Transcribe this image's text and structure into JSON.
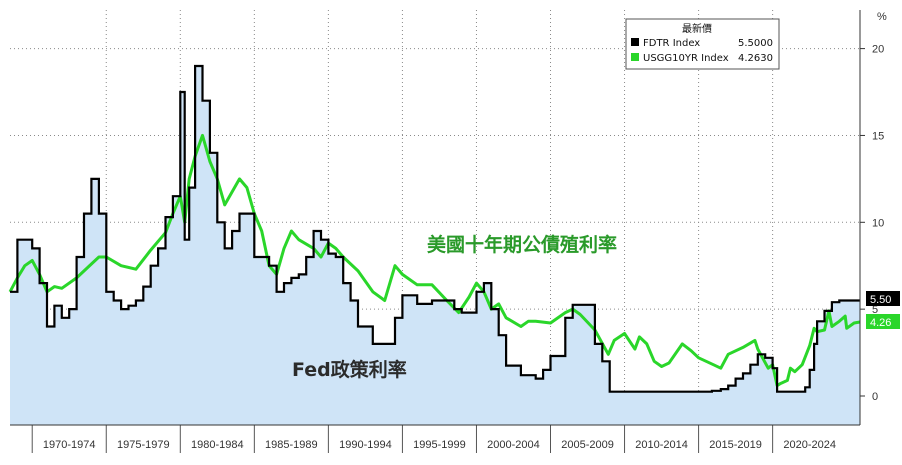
{
  "chart_data": {
    "type": "line",
    "y_unit_label": "%",
    "ylim": [
      -2,
      21
    ],
    "y_ticks": [
      0,
      5,
      10,
      15,
      20
    ],
    "x_range": [
      1968.5,
      2025.9
    ],
    "x_period_labels": [
      "1970-1974",
      "1975-1979",
      "1980-1984",
      "1985-1989",
      "1990-1994",
      "1995-1999",
      "2000-2004",
      "2005-2009",
      "2010-2014",
      "2015-2019",
      "2020-2024"
    ],
    "grid": true,
    "legend": {
      "title": "最新價",
      "placement": "top-right",
      "entries": [
        {
          "name": "FDTR Index",
          "value": "5.5000",
          "color": "#000000"
        },
        {
          "name": "USGG10YR Index",
          "value": "4.2630",
          "color": "#2ad62a"
        }
      ]
    },
    "annotations": {
      "green_label": "美國十年期公債殖利率",
      "black_label": "Fed政策利率"
    },
    "last_value_tags": [
      {
        "text": "5.50",
        "value": 5.5,
        "color": "#000000"
      },
      {
        "text": "4.26",
        "value": 4.26,
        "color": "#2ad62a"
      }
    ],
    "series": [
      {
        "name": "FDTR Index",
        "color": "#000000",
        "x": [
          1968.5,
          1969.0,
          1969.5,
          1970.0,
          1970.5,
          1971.0,
          1971.5,
          1972.0,
          1972.5,
          1973.0,
          1973.5,
          1974.0,
          1974.5,
          1975.0,
          1975.5,
          1976.0,
          1976.5,
          1977.0,
          1977.5,
          1978.0,
          1978.5,
          1979.0,
          1979.5,
          1980.0,
          1980.3,
          1980.6,
          1981.0,
          1981.5,
          1982.0,
          1982.5,
          1983.0,
          1983.5,
          1984.0,
          1984.5,
          1985.0,
          1985.5,
          1986.0,
          1986.5,
          1987.0,
          1987.5,
          1988.0,
          1988.5,
          1989.0,
          1989.5,
          1990.0,
          1990.5,
          1991.0,
          1991.5,
          1992.0,
          1993.0,
          1994.0,
          1994.5,
          1995.0,
          1996.0,
          1997.0,
          1998.0,
          1998.5,
          1999.0,
          2000.0,
          2000.5,
          2001.0,
          2001.5,
          2002.0,
          2003.0,
          2004.0,
          2004.5,
          2005.0,
          2006.0,
          2006.5,
          2007.0,
          2007.5,
          2008.0,
          2008.5,
          2009.0,
          2010.0,
          2012.0,
          2015.0,
          2015.9,
          2016.5,
          2017.0,
          2017.5,
          2018.0,
          2018.5,
          2019.0,
          2019.5,
          2020.0,
          2020.3,
          2021.0,
          2021.9,
          2022.2,
          2022.5,
          2022.8,
          2023.0,
          2023.5,
          2024.0,
          2024.5,
          2025.0,
          2025.9
        ],
        "y": [
          6.0,
          9.0,
          9.0,
          8.5,
          6.5,
          4.0,
          5.2,
          4.5,
          5.0,
          8.0,
          10.5,
          12.5,
          10.5,
          6.0,
          5.5,
          5.0,
          5.2,
          5.5,
          6.3,
          7.5,
          8.5,
          10.3,
          11.5,
          17.5,
          9.0,
          12.0,
          19.0,
          17.0,
          14.0,
          10.0,
          8.5,
          9.5,
          10.5,
          10.5,
          8.0,
          8.0,
          7.5,
          6.0,
          6.5,
          6.8,
          7.0,
          8.0,
          9.5,
          9.0,
          8.2,
          8.0,
          6.5,
          5.5,
          4.0,
          3.0,
          3.0,
          4.5,
          5.8,
          5.3,
          5.5,
          5.5,
          5.0,
          4.8,
          6.0,
          6.5,
          5.0,
          3.5,
          1.75,
          1.2,
          1.0,
          1.5,
          2.3,
          4.5,
          5.25,
          5.25,
          5.25,
          3.0,
          2.0,
          0.25,
          0.25,
          0.25,
          0.25,
          0.3,
          0.4,
          0.6,
          1.0,
          1.3,
          1.8,
          2.4,
          2.2,
          1.6,
          0.25,
          0.25,
          0.25,
          0.5,
          1.5,
          3.0,
          4.3,
          4.9,
          5.4,
          5.5,
          5.5,
          5.5
        ]
      },
      {
        "name": "USGG10YR Index",
        "color": "#2ad62a",
        "x": [
          1968.5,
          1969.0,
          1969.5,
          1970.0,
          1970.5,
          1971.0,
          1971.5,
          1972.0,
          1973.0,
          1974.0,
          1974.5,
          1975.0,
          1976.0,
          1977.0,
          1978.0,
          1979.0,
          1979.5,
          1980.0,
          1980.3,
          1980.6,
          1981.0,
          1981.5,
          1982.0,
          1982.5,
          1983.0,
          1984.0,
          1984.5,
          1985.0,
          1985.5,
          1986.0,
          1986.5,
          1987.0,
          1987.5,
          1988.0,
          1989.0,
          1989.5,
          1990.0,
          1990.5,
          1991.0,
          1992.0,
          1993.0,
          1993.8,
          1994.5,
          1995.0,
          1996.0,
          1997.0,
          1998.0,
          1998.8,
          1999.5,
          2000.0,
          2000.5,
          2001.0,
          2001.5,
          2002.0,
          2003.0,
          2003.5,
          2004.0,
          2005.0,
          2006.0,
          2006.5,
          2007.0,
          2008.0,
          2008.9,
          2009.3,
          2010.0,
          2010.7,
          2011.0,
          2011.5,
          2012.0,
          2012.5,
          2013.0,
          2013.9,
          2014.5,
          2015.0,
          2016.0,
          2016.5,
          2017.0,
          2018.0,
          2018.8,
          2019.0,
          2019.7,
          2020.0,
          2020.3,
          2020.5,
          2021.0,
          2021.2,
          2021.5,
          2022.0,
          2022.5,
          2022.8,
          2023.0,
          2023.5,
          2023.8,
          2024.0,
          2024.5,
          2024.9,
          2025.0,
          2025.5,
          2025.9
        ],
        "y": [
          6.0,
          6.8,
          7.5,
          7.8,
          7.0,
          6.0,
          6.3,
          6.2,
          6.8,
          7.6,
          8.0,
          8.0,
          7.5,
          7.3,
          8.4,
          9.4,
          10.5,
          11.5,
          10.0,
          12.5,
          13.8,
          15.0,
          13.5,
          12.5,
          11.0,
          12.5,
          12.0,
          10.5,
          9.5,
          7.5,
          7.0,
          8.5,
          9.5,
          9.0,
          8.5,
          8.0,
          8.8,
          8.5,
          8.0,
          7.2,
          6.0,
          5.5,
          7.5,
          7.0,
          6.4,
          6.4,
          5.5,
          4.8,
          5.7,
          6.5,
          6.0,
          5.0,
          5.3,
          4.5,
          4.0,
          4.3,
          4.3,
          4.2,
          4.8,
          5.0,
          4.7,
          3.8,
          2.4,
          3.2,
          3.6,
          2.7,
          3.4,
          3.0,
          2.0,
          1.7,
          1.9,
          3.0,
          2.6,
          2.2,
          1.8,
          1.6,
          2.4,
          2.8,
          3.2,
          2.7,
          1.6,
          1.8,
          0.6,
          0.7,
          0.9,
          1.6,
          1.4,
          1.8,
          2.9,
          3.9,
          3.7,
          3.8,
          4.9,
          4.0,
          4.3,
          4.6,
          3.9,
          4.2,
          4.26
        ]
      }
    ]
  }
}
